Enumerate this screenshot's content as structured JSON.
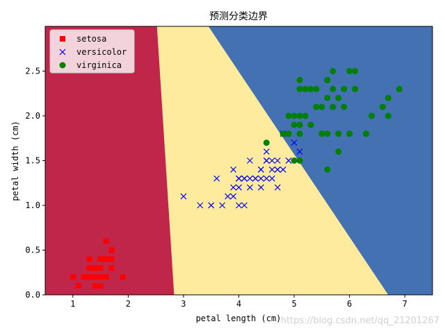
{
  "chart_data": {
    "type": "scatter",
    "title": "预测分类边界",
    "xlabel": "petal length (cm)",
    "ylabel": "petal width (cm)",
    "xlim": [
      0.5,
      7.5
    ],
    "ylim": [
      0.0,
      3.0
    ],
    "xticks": [
      1,
      2,
      3,
      4,
      5,
      6,
      7
    ],
    "yticks": [
      0.0,
      0.5,
      1.0,
      1.5,
      2.0,
      2.5
    ],
    "ytick_labels": [
      "0.0",
      "0.5",
      "1.0",
      "1.5",
      "2.0",
      "2.5"
    ],
    "grid": false,
    "legend_position": "top-left",
    "regions": [
      {
        "class": "setosa",
        "color": "#c0264a"
      },
      {
        "class": "versicolor",
        "color": "#feeb9e"
      },
      {
        "class": "virginica",
        "color": "#4471b2"
      }
    ],
    "boundaries": [
      {
        "between": [
          "setosa",
          "versicolor"
        ],
        "points": [
          [
            2.52,
            3.0
          ],
          [
            2.83,
            0.0
          ]
        ]
      },
      {
        "between": [
          "versicolor",
          "virginica"
        ],
        "points": [
          [
            3.45,
            3.0
          ],
          [
            6.7,
            0.0
          ]
        ]
      }
    ],
    "series": [
      {
        "name": "setosa",
        "marker": "square",
        "color": "#ff0000",
        "points": [
          [
            1.4,
            0.2
          ],
          [
            1.3,
            0.2
          ],
          [
            1.5,
            0.2
          ],
          [
            1.7,
            0.4
          ],
          [
            1.4,
            0.3
          ],
          [
            1.5,
            0.1
          ],
          [
            1.6,
            0.2
          ],
          [
            1.1,
            0.1
          ],
          [
            1.2,
            0.2
          ],
          [
            1.0,
            0.2
          ],
          [
            1.7,
            0.5
          ],
          [
            1.9,
            0.2
          ],
          [
            1.6,
            0.4
          ],
          [
            1.3,
            0.4
          ],
          [
            1.6,
            0.6
          ],
          [
            1.3,
            0.3
          ],
          [
            1.5,
            0.4
          ],
          [
            1.7,
            0.3
          ],
          [
            1.4,
            0.1
          ],
          [
            1.5,
            0.3
          ]
        ]
      },
      {
        "name": "versicolor",
        "marker": "x",
        "color": "#0000ff",
        "points": [
          [
            4.7,
            1.4
          ],
          [
            4.5,
            1.5
          ],
          [
            4.9,
            1.5
          ],
          [
            4.0,
            1.3
          ],
          [
            4.6,
            1.5
          ],
          [
            4.5,
            1.3
          ],
          [
            3.3,
            1.0
          ],
          [
            4.6,
            1.3
          ],
          [
            3.9,
            1.4
          ],
          [
            3.5,
            1.0
          ],
          [
            4.2,
            1.5
          ],
          [
            4.0,
            1.0
          ],
          [
            4.7,
            1.4
          ],
          [
            3.6,
            1.3
          ],
          [
            4.4,
            1.4
          ],
          [
            4.1,
            1.0
          ],
          [
            4.5,
            1.5
          ],
          [
            3.9,
            1.1
          ],
          [
            4.8,
            1.8
          ],
          [
            4.0,
            1.3
          ],
          [
            4.9,
            1.5
          ],
          [
            4.7,
            1.2
          ],
          [
            4.3,
            1.3
          ],
          [
            4.4,
            1.4
          ],
          [
            4.8,
            1.4
          ],
          [
            5.0,
            1.7
          ],
          [
            4.5,
            1.5
          ],
          [
            3.5,
            1.0
          ],
          [
            3.8,
            1.1
          ],
          [
            3.7,
            1.0
          ],
          [
            3.9,
            1.2
          ],
          [
            5.1,
            1.6
          ],
          [
            4.5,
            1.6
          ],
          [
            4.7,
            1.5
          ],
          [
            4.4,
            1.3
          ],
          [
            4.1,
            1.3
          ],
          [
            4.0,
            1.3
          ],
          [
            4.4,
            1.2
          ],
          [
            4.6,
            1.4
          ],
          [
            4.0,
            1.2
          ],
          [
            3.0,
            1.1
          ],
          [
            4.2,
            1.3
          ],
          [
            4.2,
            1.2
          ],
          [
            4.3,
            1.3
          ],
          [
            4.1,
            1.3
          ]
        ]
      },
      {
        "name": "virginica",
        "marker": "circle",
        "color": "#008000",
        "points": [
          [
            6.0,
            2.5
          ],
          [
            5.1,
            1.9
          ],
          [
            5.9,
            2.1
          ],
          [
            5.6,
            1.8
          ],
          [
            5.8,
            2.2
          ],
          [
            6.6,
            2.1
          ],
          [
            4.5,
            1.7
          ],
          [
            6.3,
            1.8
          ],
          [
            5.8,
            1.8
          ],
          [
            6.1,
            2.5
          ],
          [
            5.1,
            2.0
          ],
          [
            5.3,
            1.9
          ],
          [
            5.5,
            2.1
          ],
          [
            5.0,
            2.0
          ],
          [
            5.1,
            2.4
          ],
          [
            5.3,
            2.3
          ],
          [
            6.7,
            2.2
          ],
          [
            6.9,
            2.3
          ],
          [
            5.0,
            1.5
          ],
          [
            5.7,
            2.3
          ],
          [
            4.9,
            2.0
          ],
          [
            6.7,
            2.0
          ],
          [
            4.9,
            1.8
          ],
          [
            5.7,
            2.1
          ],
          [
            6.0,
            1.8
          ],
          [
            4.8,
            1.8
          ],
          [
            5.8,
            1.6
          ],
          [
            6.4,
            2.0
          ],
          [
            5.6,
            2.2
          ],
          [
            5.1,
            1.5
          ],
          [
            5.6,
            1.4
          ],
          [
            6.1,
            2.3
          ],
          [
            5.6,
            2.4
          ],
          [
            5.5,
            1.8
          ],
          [
            5.4,
            2.1
          ],
          [
            5.6,
            2.4
          ],
          [
            5.1,
            2.3
          ],
          [
            5.9,
            2.3
          ],
          [
            5.7,
            2.5
          ],
          [
            5.2,
            2.3
          ],
          [
            5.0,
            1.9
          ],
          [
            5.2,
            2.0
          ],
          [
            5.4,
            2.3
          ],
          [
            5.1,
            1.8
          ],
          [
            6.3,
            1.8
          ],
          [
            5.5,
            1.8
          ],
          [
            5.2,
            2.3
          ],
          [
            4.8,
            1.8
          ]
        ]
      }
    ]
  },
  "watermark": "https://blog.csdn.net/qq_21201267"
}
